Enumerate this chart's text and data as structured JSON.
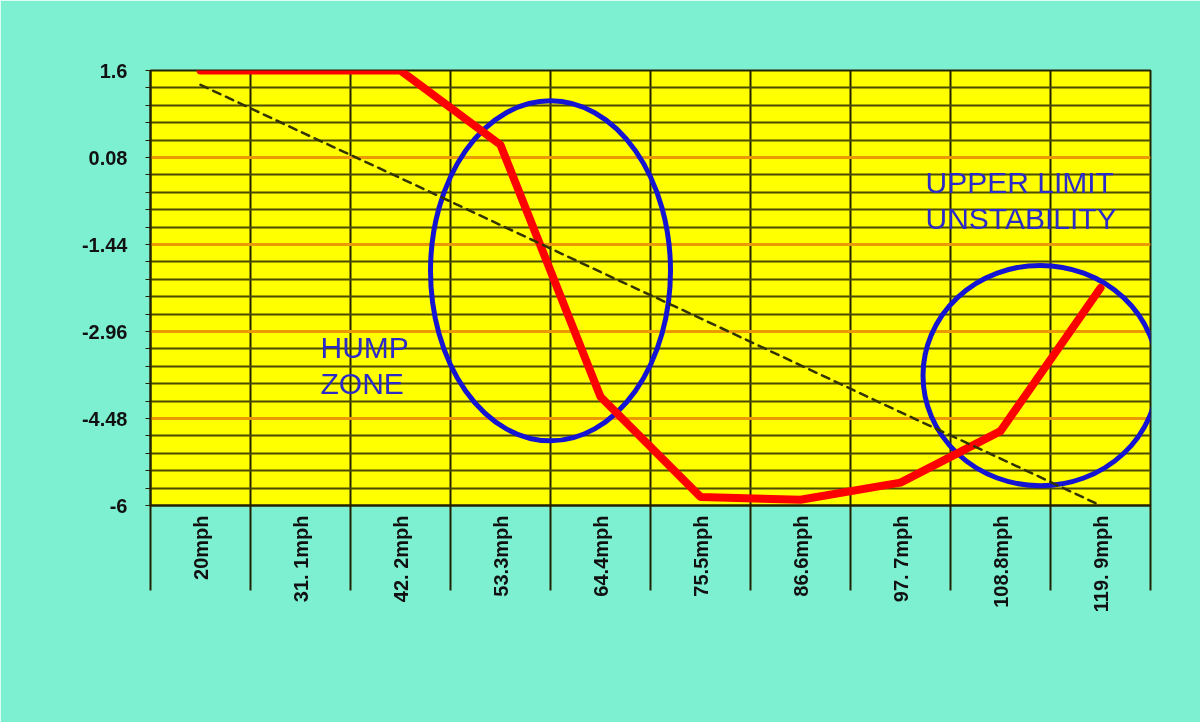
{
  "chart_data": {
    "type": "line",
    "categories": [
      "20mph",
      "31. 1mph",
      "42. 2mph",
      "53.3mph",
      "64.4mph",
      "75.5mph",
      "86.6mph",
      "97. 7mph",
      "108.8mph",
      "119. 9mph"
    ],
    "series": [
      {
        "color": "#ff0000",
        "values": [
          1.6,
          1.6,
          1.6,
          0.3,
          -4.1,
          -5.85,
          -5.9,
          -5.6,
          -4.7,
          -2.2
        ]
      },
      {
        "color": "#333300",
        "line_style": "dashed",
        "values": [
          1.35,
          0.53,
          -0.28,
          -1.1,
          -1.92,
          -2.73,
          -3.55,
          -4.37,
          -5.18,
          -6.0
        ]
      }
    ],
    "ylim": [
      -6,
      1.6
    ],
    "yticks": [
      1.6,
      {
        "value": 1.296,
        "label": null
      },
      {
        "value": 0.992,
        "label": null
      },
      {
        "value": 0.688,
        "label": null
      },
      {
        "value": 0.384,
        "label": null
      },
      0.08,
      {
        "value": -0.224,
        "label": null
      },
      {
        "value": -0.528,
        "label": null
      },
      {
        "value": -0.832,
        "label": null
      },
      {
        "value": -1.136,
        "label": null
      },
      -1.44,
      {
        "value": -1.744,
        "label": null
      },
      {
        "value": -2.048,
        "label": null
      },
      {
        "value": -2.352,
        "label": null
      },
      {
        "value": -2.656,
        "label": null
      },
      -2.96,
      {
        "value": -3.264,
        "label": null
      },
      {
        "value": -3.568,
        "label": null
      },
      {
        "value": -3.872,
        "label": null
      },
      {
        "value": -4.176,
        "label": null
      },
      -4.48,
      {
        "value": -4.784,
        "label": null
      },
      {
        "value": -5.088,
        "label": null
      },
      {
        "value": -5.392,
        "label": null
      },
      {
        "value": -5.696,
        "label": null
      },
      -6
    ],
    "grid": true,
    "annotations": [
      "HUMP\nZONE",
      "UPPER LIMIT\nUNSTABILITY"
    ]
  }
}
